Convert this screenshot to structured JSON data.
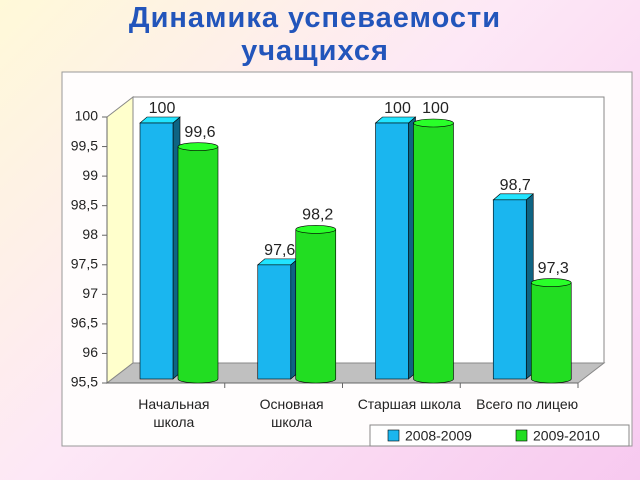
{
  "chart_data": {
    "type": "bar3d",
    "title": "Динамика успеваемости учащихся",
    "categories": [
      "Начальная школа",
      "Основная школа",
      "Старшая школа",
      "Всего по лицею"
    ],
    "series": [
      {
        "name": "2008-2009",
        "color": "#1ab6ef",
        "values": [
          100,
          97.6,
          100,
          98.7
        ],
        "value_labels": [
          "100",
          "97,6",
          "100",
          "98,7"
        ]
      },
      {
        "name": "2009-2010",
        "color": "#22dd22",
        "values": [
          99.6,
          98.2,
          100,
          97.3
        ],
        "value_labels": [
          "99,6",
          "98,2",
          "100",
          "97,3"
        ]
      }
    ],
    "ylim": [
      95.5,
      100
    ],
    "yticks": [
      {
        "value": 95.5,
        "label": "95,5"
      },
      96,
      {
        "value": 96.5,
        "label": "96,5"
      },
      97,
      {
        "value": 97.5,
        "label": "97,5"
      },
      98,
      {
        "value": 98.5,
        "label": "98,5"
      },
      99,
      {
        "value": 99.5,
        "label": "99,5"
      },
      100
    ],
    "grid": false,
    "legend": "bottom-right"
  }
}
